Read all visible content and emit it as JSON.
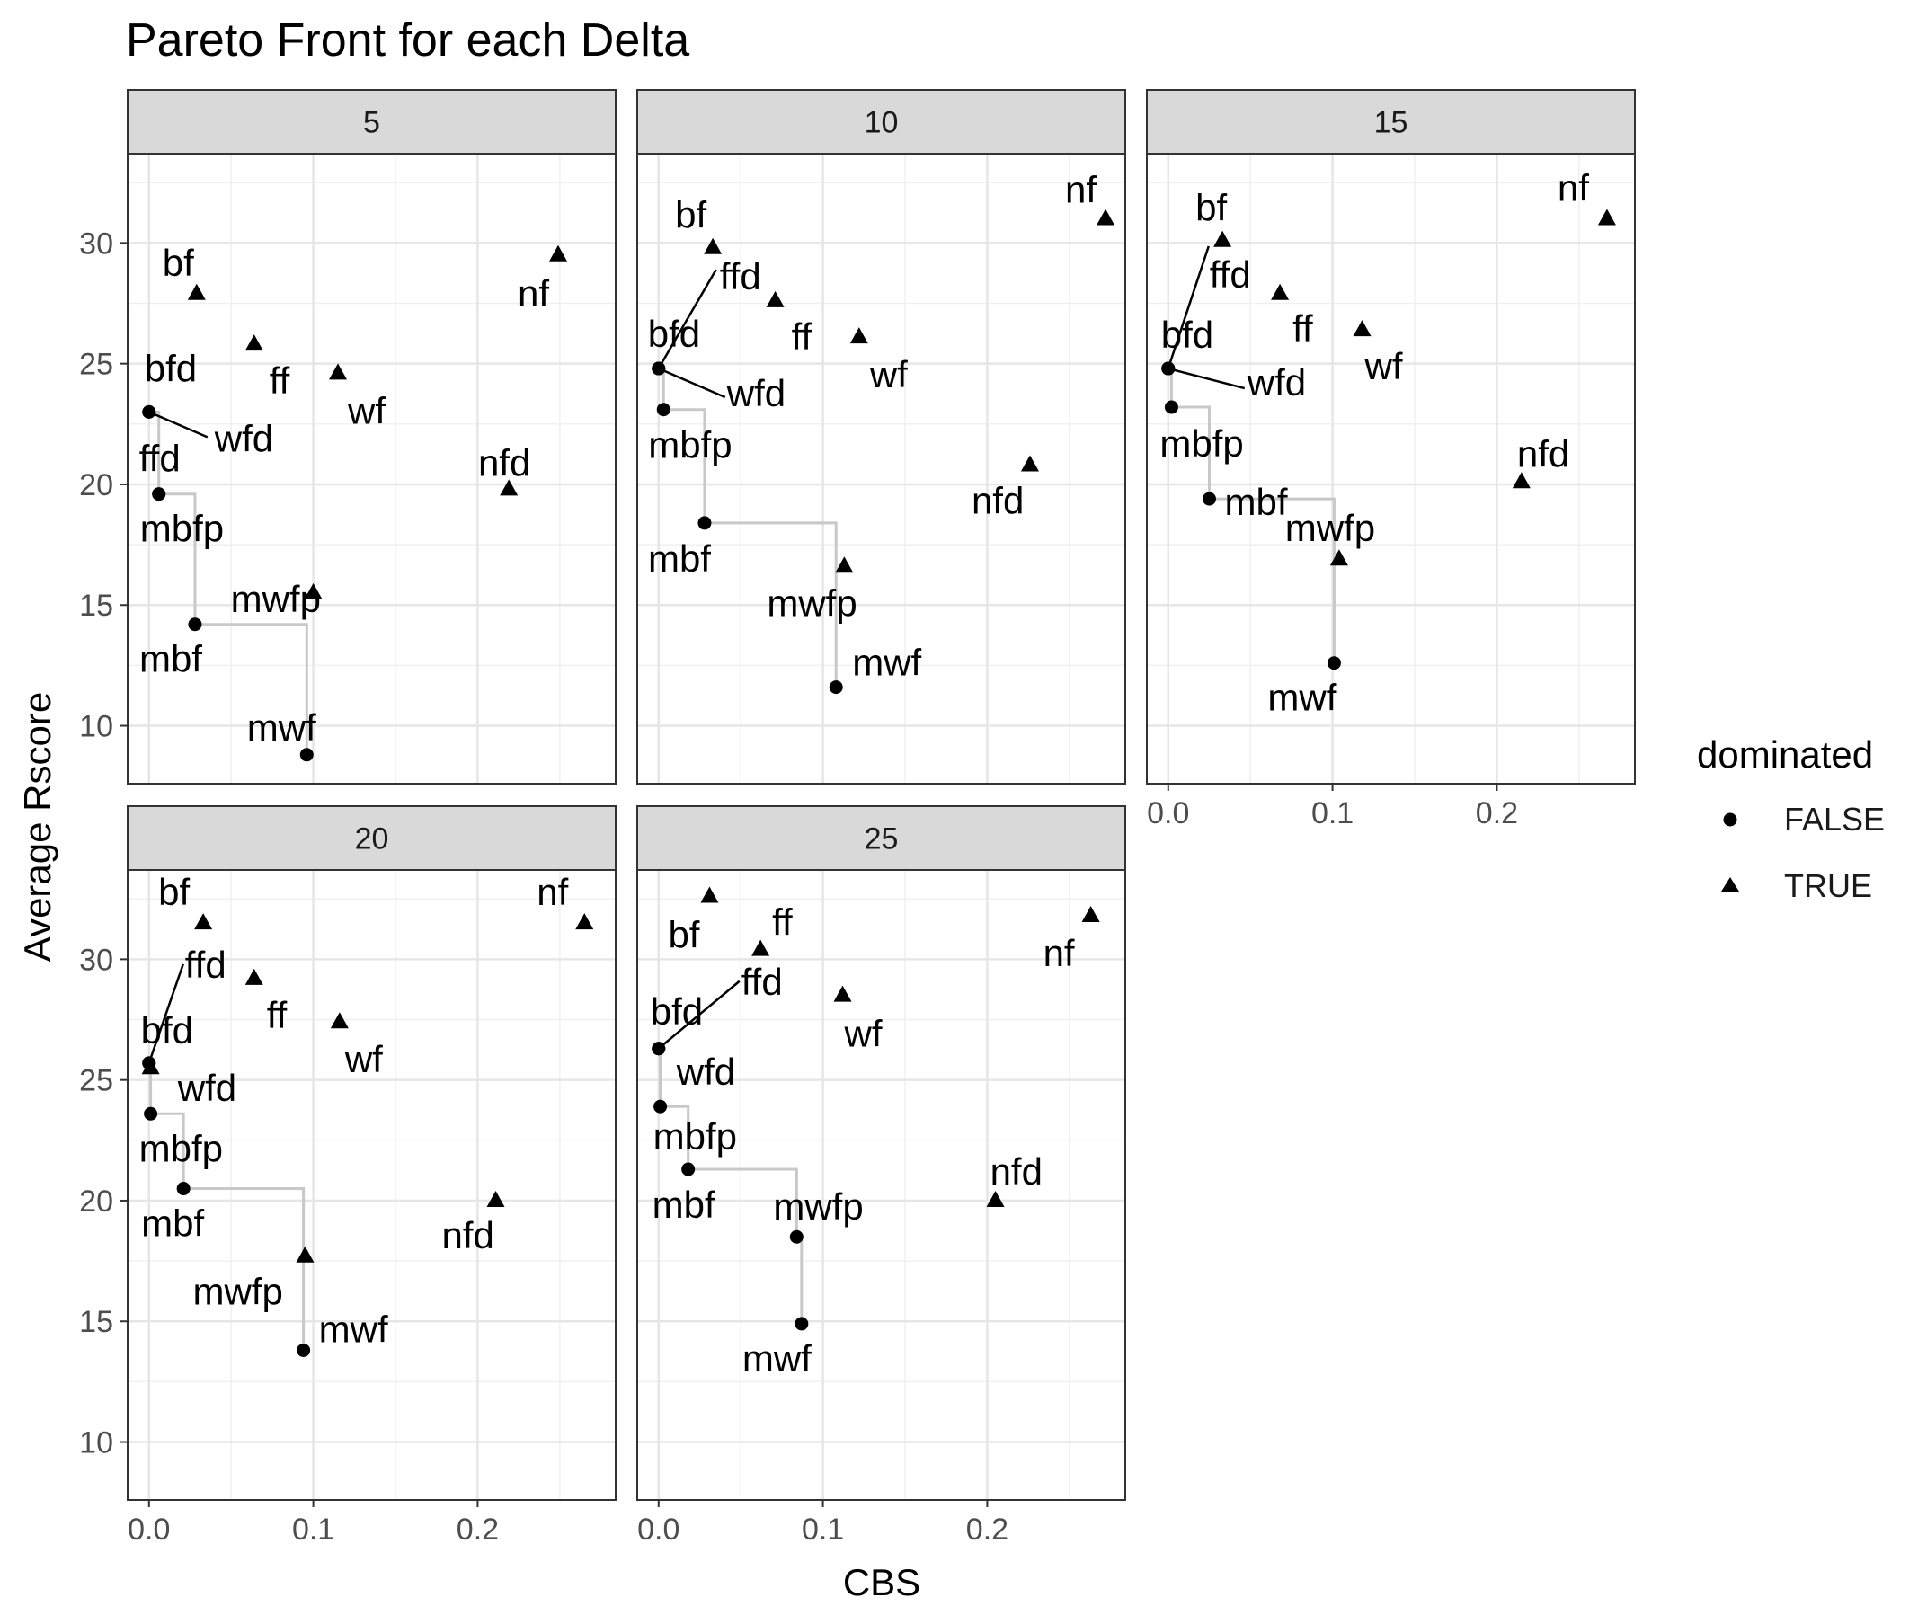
{
  "chart_data": {
    "type": "scatter",
    "title": "Pareto Front for each Delta",
    "xlabel": "CBS",
    "ylabel": "Average Rscore",
    "xlim": [
      -0.013,
      0.284
    ],
    "ylim": [
      7.6,
      33.7
    ],
    "x_ticks": [
      0.0,
      0.1,
      0.2
    ],
    "x_tick_labels": [
      "0.0",
      "0.1",
      "0.2"
    ],
    "y_ticks": [
      10,
      15,
      20,
      25,
      30
    ],
    "y_tick_labels": [
      "10",
      "15",
      "20",
      "25",
      "30"
    ],
    "grid": true,
    "legend": {
      "title": "dominated",
      "placement": "right",
      "entries": [
        {
          "label": "FALSE",
          "shape": "circle"
        },
        {
          "label": "TRUE",
          "shape": "triangle"
        }
      ]
    },
    "facets": [
      {
        "strip": "5",
        "points": [
          {
            "label": "bf",
            "x": 0.029,
            "y": 27.9,
            "dominated": true
          },
          {
            "label": "ff",
            "x": 0.064,
            "y": 25.8,
            "dominated": true
          },
          {
            "label": "wf",
            "x": 0.115,
            "y": 24.6,
            "dominated": true
          },
          {
            "label": "nf",
            "x": 0.249,
            "y": 29.5,
            "dominated": true
          },
          {
            "label": "nfd",
            "x": 0.219,
            "y": 19.8,
            "dominated": true
          },
          {
            "label": "mwfp",
            "x": 0.1,
            "y": 15.5,
            "dominated": true
          },
          {
            "label": "bfd",
            "x": 0.0,
            "y": 23.0,
            "dominated": false
          },
          {
            "label": "wfd",
            "x": 0.0,
            "y": 23.0,
            "dominated": false
          },
          {
            "label": "ffd",
            "x": 0.006,
            "y": 19.6,
            "dominated": false
          },
          {
            "label": "mbfp",
            "x": 0.006,
            "y": 19.6,
            "dominated": false
          },
          {
            "label": "mbf",
            "x": 0.028,
            "y": 14.2,
            "dominated": false
          },
          {
            "label": "mwf",
            "x": 0.096,
            "y": 8.8,
            "dominated": false
          }
        ]
      },
      {
        "strip": "10",
        "points": [
          {
            "label": "bf",
            "x": 0.033,
            "y": 29.8,
            "dominated": true
          },
          {
            "label": "ff",
            "x": 0.071,
            "y": 27.6,
            "dominated": true
          },
          {
            "label": "wf",
            "x": 0.122,
            "y": 26.1,
            "dominated": true
          },
          {
            "label": "nf",
            "x": 0.272,
            "y": 31.0,
            "dominated": true
          },
          {
            "label": "nfd",
            "x": 0.226,
            "y": 20.8,
            "dominated": true
          },
          {
            "label": "mwfp",
            "x": 0.113,
            "y": 16.6,
            "dominated": true
          },
          {
            "label": "bfd",
            "x": 0.0,
            "y": 24.8,
            "dominated": false
          },
          {
            "label": "ffd",
            "x": 0.0,
            "y": 24.8,
            "dominated": false
          },
          {
            "label": "wfd",
            "x": 0.0,
            "y": 24.8,
            "dominated": false
          },
          {
            "label": "mbfp",
            "x": 0.003,
            "y": 23.1,
            "dominated": false
          },
          {
            "label": "mbf",
            "x": 0.028,
            "y": 18.4,
            "dominated": false
          },
          {
            "label": "mwf",
            "x": 0.108,
            "y": 11.6,
            "dominated": false
          }
        ]
      },
      {
        "strip": "15",
        "points": [
          {
            "label": "bf",
            "x": 0.033,
            "y": 30.1,
            "dominated": true
          },
          {
            "label": "ff",
            "x": 0.068,
            "y": 27.9,
            "dominated": true
          },
          {
            "label": "wf",
            "x": 0.118,
            "y": 26.4,
            "dominated": true
          },
          {
            "label": "nf",
            "x": 0.267,
            "y": 31.0,
            "dominated": true
          },
          {
            "label": "nfd",
            "x": 0.215,
            "y": 20.1,
            "dominated": true
          },
          {
            "label": "mwfp",
            "x": 0.104,
            "y": 16.9,
            "dominated": true
          },
          {
            "label": "bfd",
            "x": 0.0,
            "y": 24.8,
            "dominated": false
          },
          {
            "label": "ffd",
            "x": 0.0,
            "y": 24.8,
            "dominated": false
          },
          {
            "label": "wfd",
            "x": 0.0,
            "y": 24.8,
            "dominated": false
          },
          {
            "label": "mbfp",
            "x": 0.002,
            "y": 23.2,
            "dominated": false
          },
          {
            "label": "mbf",
            "x": 0.025,
            "y": 19.4,
            "dominated": false
          },
          {
            "label": "mwf",
            "x": 0.101,
            "y": 12.6,
            "dominated": false
          }
        ]
      },
      {
        "strip": "20",
        "points": [
          {
            "label": "bf",
            "x": 0.033,
            "y": 31.5,
            "dominated": true
          },
          {
            "label": "ff",
            "x": 0.064,
            "y": 29.2,
            "dominated": true
          },
          {
            "label": "wf",
            "x": 0.116,
            "y": 27.4,
            "dominated": true
          },
          {
            "label": "nf",
            "x": 0.265,
            "y": 31.5,
            "dominated": true
          },
          {
            "label": "nfd",
            "x": 0.211,
            "y": 20.0,
            "dominated": true
          },
          {
            "label": "mwfp",
            "x": 0.095,
            "y": 17.7,
            "dominated": true
          },
          {
            "label": "bfd",
            "x": 0.001,
            "y": 25.5,
            "dominated": true
          },
          {
            "label": "ffd",
            "x": 0.0,
            "y": 25.7,
            "dominated": false
          },
          {
            "label": "wfd",
            "x": 0.0,
            "y": 25.7,
            "dominated": false
          },
          {
            "label": "mbfp",
            "x": 0.001,
            "y": 23.6,
            "dominated": false
          },
          {
            "label": "mbf",
            "x": 0.021,
            "y": 20.5,
            "dominated": false
          },
          {
            "label": "mwf",
            "x": 0.094,
            "y": 13.8,
            "dominated": false
          }
        ]
      },
      {
        "strip": "25",
        "points": [
          {
            "label": "bf",
            "x": 0.031,
            "y": 32.6,
            "dominated": true
          },
          {
            "label": "ff",
            "x": 0.062,
            "y": 30.4,
            "dominated": true
          },
          {
            "label": "wf",
            "x": 0.112,
            "y": 28.5,
            "dominated": true
          },
          {
            "label": "nf",
            "x": 0.263,
            "y": 31.8,
            "dominated": true
          },
          {
            "label": "nfd",
            "x": 0.205,
            "y": 20.0,
            "dominated": true
          },
          {
            "label": "bfd",
            "x": 0.0,
            "y": 26.3,
            "dominated": false
          },
          {
            "label": "ffd",
            "x": 0.0,
            "y": 26.3,
            "dominated": false
          },
          {
            "label": "wfd",
            "x": 0.0,
            "y": 26.3,
            "dominated": false
          },
          {
            "label": "mbfp",
            "x": 0.001,
            "y": 23.9,
            "dominated": false
          },
          {
            "label": "mbf",
            "x": 0.018,
            "y": 21.3,
            "dominated": false
          },
          {
            "label": "mwfp",
            "x": 0.084,
            "y": 18.5,
            "dominated": false
          },
          {
            "label": "mwf",
            "x": 0.087,
            "y": 14.9,
            "dominated": false
          }
        ]
      }
    ]
  }
}
